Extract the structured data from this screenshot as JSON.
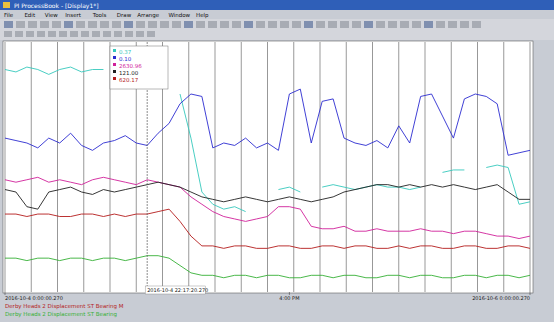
{
  "window": {
    "title": "PI ProcessBook - [Display1*]",
    "menu": [
      "File",
      "Edit",
      "View",
      "Insert",
      "Tools",
      "Draw",
      "Arrange",
      "Window",
      "Help"
    ]
  },
  "chart_data": {
    "type": "line",
    "x": [
      0,
      1,
      2,
      3,
      4,
      5,
      6,
      7,
      8,
      9,
      10,
      11,
      12,
      13,
      14,
      15,
      16,
      17,
      18,
      19,
      20,
      21,
      22,
      23,
      24,
      25,
      26,
      27,
      28,
      29,
      30,
      31,
      32,
      33,
      34,
      35,
      36,
      37,
      38,
      39,
      40,
      41,
      42,
      43,
      44,
      45,
      46,
      47,
      48
    ],
    "xlim": [
      0,
      48
    ],
    "xticks": [
      {
        "value": 0,
        "label": "2016-10-4 0:00:00.270"
      },
      {
        "value": 26,
        "label": "4:00 PM"
      },
      {
        "value": 48,
        "label": "2016-10-6 0:00:00.270"
      }
    ],
    "ylim": [
      0,
      100
    ],
    "tick_labels": "x",
    "grid": true,
    "cursor": {
      "x": 13,
      "label": "2016-10-4 22:17:20.270",
      "values": [
        "0.37",
        "0.10",
        "2630.96",
        "121.00",
        "620.17"
      ]
    },
    "series": [
      {
        "color": "#36c8bc",
        "values": [
          90,
          89,
          91,
          90,
          88,
          90,
          91,
          89,
          90,
          90,
          null,
          null,
          null,
          null,
          null,
          null,
          80,
          62,
          40,
          35,
          33,
          34,
          32,
          null,
          null,
          41,
          42,
          40,
          null,
          42,
          43,
          42,
          41,
          42,
          43,
          42,
          42,
          41,
          42,
          null,
          48,
          49,
          49,
          null,
          50,
          51,
          50,
          35,
          36
        ]
      },
      {
        "color": "#2b2bd0",
        "values": [
          62,
          61,
          60,
          58,
          62,
          60,
          64,
          59,
          57,
          60,
          61,
          63,
          60,
          59,
          64,
          68,
          76,
          80,
          79,
          58,
          60,
          59,
          62,
          58,
          60,
          57,
          80,
          82,
          60,
          77,
          78,
          62,
          60,
          59,
          61,
          58,
          67,
          60,
          79,
          80,
          71,
          62,
          78,
          80,
          79,
          76,
          55,
          56,
          57
        ]
      },
      {
        "color": "#d0209a",
        "values": [
          45,
          44,
          45,
          46,
          44,
          45,
          44,
          43,
          45,
          46,
          45,
          44,
          43,
          45,
          44,
          43,
          42,
          38,
          35,
          32,
          30,
          29,
          28,
          29,
          30,
          34,
          34,
          33,
          26,
          25,
          25,
          26,
          24,
          24,
          25,
          24,
          24,
          24,
          25,
          24,
          24,
          23,
          24,
          24,
          23,
          22,
          22,
          21,
          22
        ]
      },
      {
        "color": "#202020",
        "values": [
          41,
          40,
          34,
          33,
          40,
          41,
          42,
          40,
          39,
          41,
          40,
          41,
          42,
          43,
          44,
          43,
          42,
          40,
          38,
          37,
          36,
          37,
          38,
          37,
          36,
          37,
          38,
          37,
          36,
          37,
          38,
          40,
          41,
          42,
          43,
          43,
          42,
          43,
          42,
          43,
          42,
          43,
          42,
          41,
          42,
          43,
          40,
          37,
          37
        ]
      },
      {
        "name": "Derby Heads 2 Displacement ST Bearing M",
        "color": "#b41c1c",
        "values": [
          31,
          31,
          30,
          31,
          31,
          30,
          30,
          31,
          31,
          30,
          31,
          30,
          31,
          31,
          32,
          33,
          28,
          22,
          18,
          18,
          17,
          18,
          18,
          17,
          17,
          18,
          18,
          17,
          17,
          18,
          18,
          17,
          18,
          18,
          17,
          17,
          18,
          17,
          18,
          18,
          17,
          17,
          18,
          18,
          17,
          17,
          18,
          18,
          17
        ]
      },
      {
        "name": "Derby Heads 2 Displacement ST Bearing",
        "color": "#36b036",
        "values": [
          13,
          13,
          12,
          13,
          13,
          12,
          13,
          13,
          12,
          13,
          13,
          12,
          13,
          14,
          14,
          13,
          10,
          7,
          6,
          6,
          5,
          6,
          6,
          5,
          6,
          6,
          5,
          5,
          6,
          6,
          5,
          6,
          6,
          5,
          5,
          6,
          6,
          5,
          6,
          6,
          5,
          5,
          6,
          6,
          5,
          6,
          6,
          5,
          6
        ]
      }
    ]
  }
}
